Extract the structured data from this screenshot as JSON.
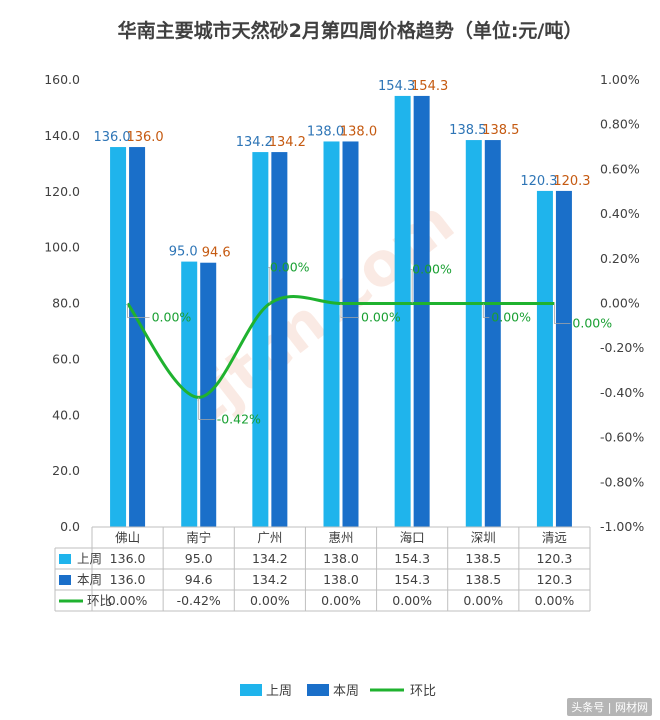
{
  "chart_data": {
    "type": "bar",
    "title": "华南主要城市天然砂2月第四周价格趋势（单位:元/吨）",
    "categories": [
      "佛山",
      "南宁",
      "广州",
      "惠州",
      "海口",
      "深圳",
      "清远"
    ],
    "series": [
      {
        "name": "上周",
        "type": "bar",
        "axis": "left",
        "color": "#1fb4ec",
        "values": [
          136.0,
          95.0,
          134.2,
          138.0,
          154.3,
          138.5,
          120.3
        ],
        "labels": [
          "136.0",
          "95.0",
          "134.2",
          "138.0",
          "154.3",
          "138.5",
          "120.3"
        ]
      },
      {
        "name": "本周",
        "type": "bar",
        "axis": "left",
        "color": "#1a6fc9",
        "values": [
          136.0,
          94.6,
          134.2,
          138.0,
          154.3,
          138.5,
          120.3
        ],
        "labels": [
          "136.0",
          "94.6",
          "134.2",
          "138.0",
          "154.3",
          "138.5",
          "120.3"
        ]
      },
      {
        "name": "环比",
        "type": "line",
        "axis": "right",
        "color": "#1fb22f",
        "values": [
          0.0,
          -0.42,
          0.0,
          0.0,
          0.0,
          0.0,
          0.0
        ],
        "labels": [
          "0.00%",
          "-0.42%",
          "0.00%",
          "0.00%",
          "0.00%",
          "0.00%",
          "0.00%"
        ]
      }
    ],
    "y_left": {
      "min": 0,
      "max": 160,
      "step": 20,
      "ticks": [
        "0.0",
        "20.0",
        "40.0",
        "60.0",
        "80.0",
        "100.0",
        "120.0",
        "140.0",
        "160.0"
      ]
    },
    "y_right": {
      "min": -1.0,
      "max": 1.0,
      "step": 0.2,
      "ticks": [
        "-1.00%",
        "-0.80%",
        "-0.60%",
        "-0.40%",
        "-0.20%",
        "0.00%",
        "0.20%",
        "0.40%",
        "0.60%",
        "0.80%",
        "1.00%"
      ]
    },
    "table": {
      "rows": [
        {
          "name": "上周",
          "cells": [
            "136.0",
            "95.0",
            "134.2",
            "138.0",
            "154.3",
            "138.5",
            "120.3"
          ]
        },
        {
          "name": "本周",
          "cells": [
            "136.0",
            "94.6",
            "134.2",
            "138.0",
            "154.3",
            "138.5",
            "120.3"
          ]
        },
        {
          "name": "环比",
          "cells": [
            "0.00%",
            "-0.42%",
            "0.00%",
            "0.00%",
            "0.00%",
            "0.00%",
            "0.00%"
          ]
        }
      ]
    },
    "legend": {
      "position": "bottom",
      "items": [
        "上周",
        "本周",
        "环比"
      ]
    },
    "grid": false
  },
  "watermark": "zjtcn.com",
  "footer": "头条号 | 网材网"
}
